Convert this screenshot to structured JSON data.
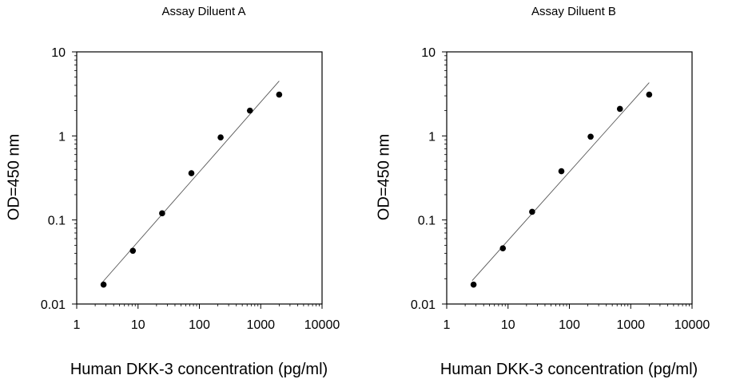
{
  "chart_data": [
    {
      "type": "scatter",
      "title": "Assay Diluent A",
      "xlabel": "Human DKK-3 concentration (pg/ml)",
      "ylabel": "OD=450 nm",
      "x_scale": "log",
      "y_scale": "log",
      "xlim": [
        1,
        10000
      ],
      "ylim": [
        0.01,
        10
      ],
      "x_ticks": [
        "1",
        "10",
        "100",
        "1000",
        "10000"
      ],
      "y_ticks": [
        "0.01",
        "0.1",
        "1",
        "10"
      ],
      "grid": false,
      "series": [
        {
          "x": [
            2.74,
            8.23,
            24.7,
            74.1,
            222,
            667,
            2000
          ],
          "y": [
            0.017,
            0.043,
            0.12,
            0.36,
            0.96,
            2.0,
            3.1
          ]
        }
      ],
      "fit_line": {
        "x": [
          2.6,
          2000
        ],
        "y": [
          0.018,
          4.5
        ]
      }
    },
    {
      "type": "scatter",
      "title": "Assay Diluent B",
      "xlabel": "Human DKK-3 concentration (pg/ml)",
      "ylabel": "OD=450 nm",
      "x_scale": "log",
      "y_scale": "log",
      "xlim": [
        1,
        10000
      ],
      "ylim": [
        0.01,
        10
      ],
      "x_ticks": [
        "1",
        "10",
        "100",
        "1000",
        "10000"
      ],
      "y_ticks": [
        "0.01",
        "0.1",
        "1",
        "10"
      ],
      "grid": false,
      "series": [
        {
          "x": [
            2.74,
            8.23,
            24.7,
            74.1,
            222,
            667,
            2000
          ],
          "y": [
            0.017,
            0.046,
            0.125,
            0.38,
            0.98,
            2.1,
            3.1
          ]
        }
      ],
      "fit_line": {
        "x": [
          2.6,
          2000
        ],
        "y": [
          0.019,
          4.3
        ]
      }
    }
  ]
}
